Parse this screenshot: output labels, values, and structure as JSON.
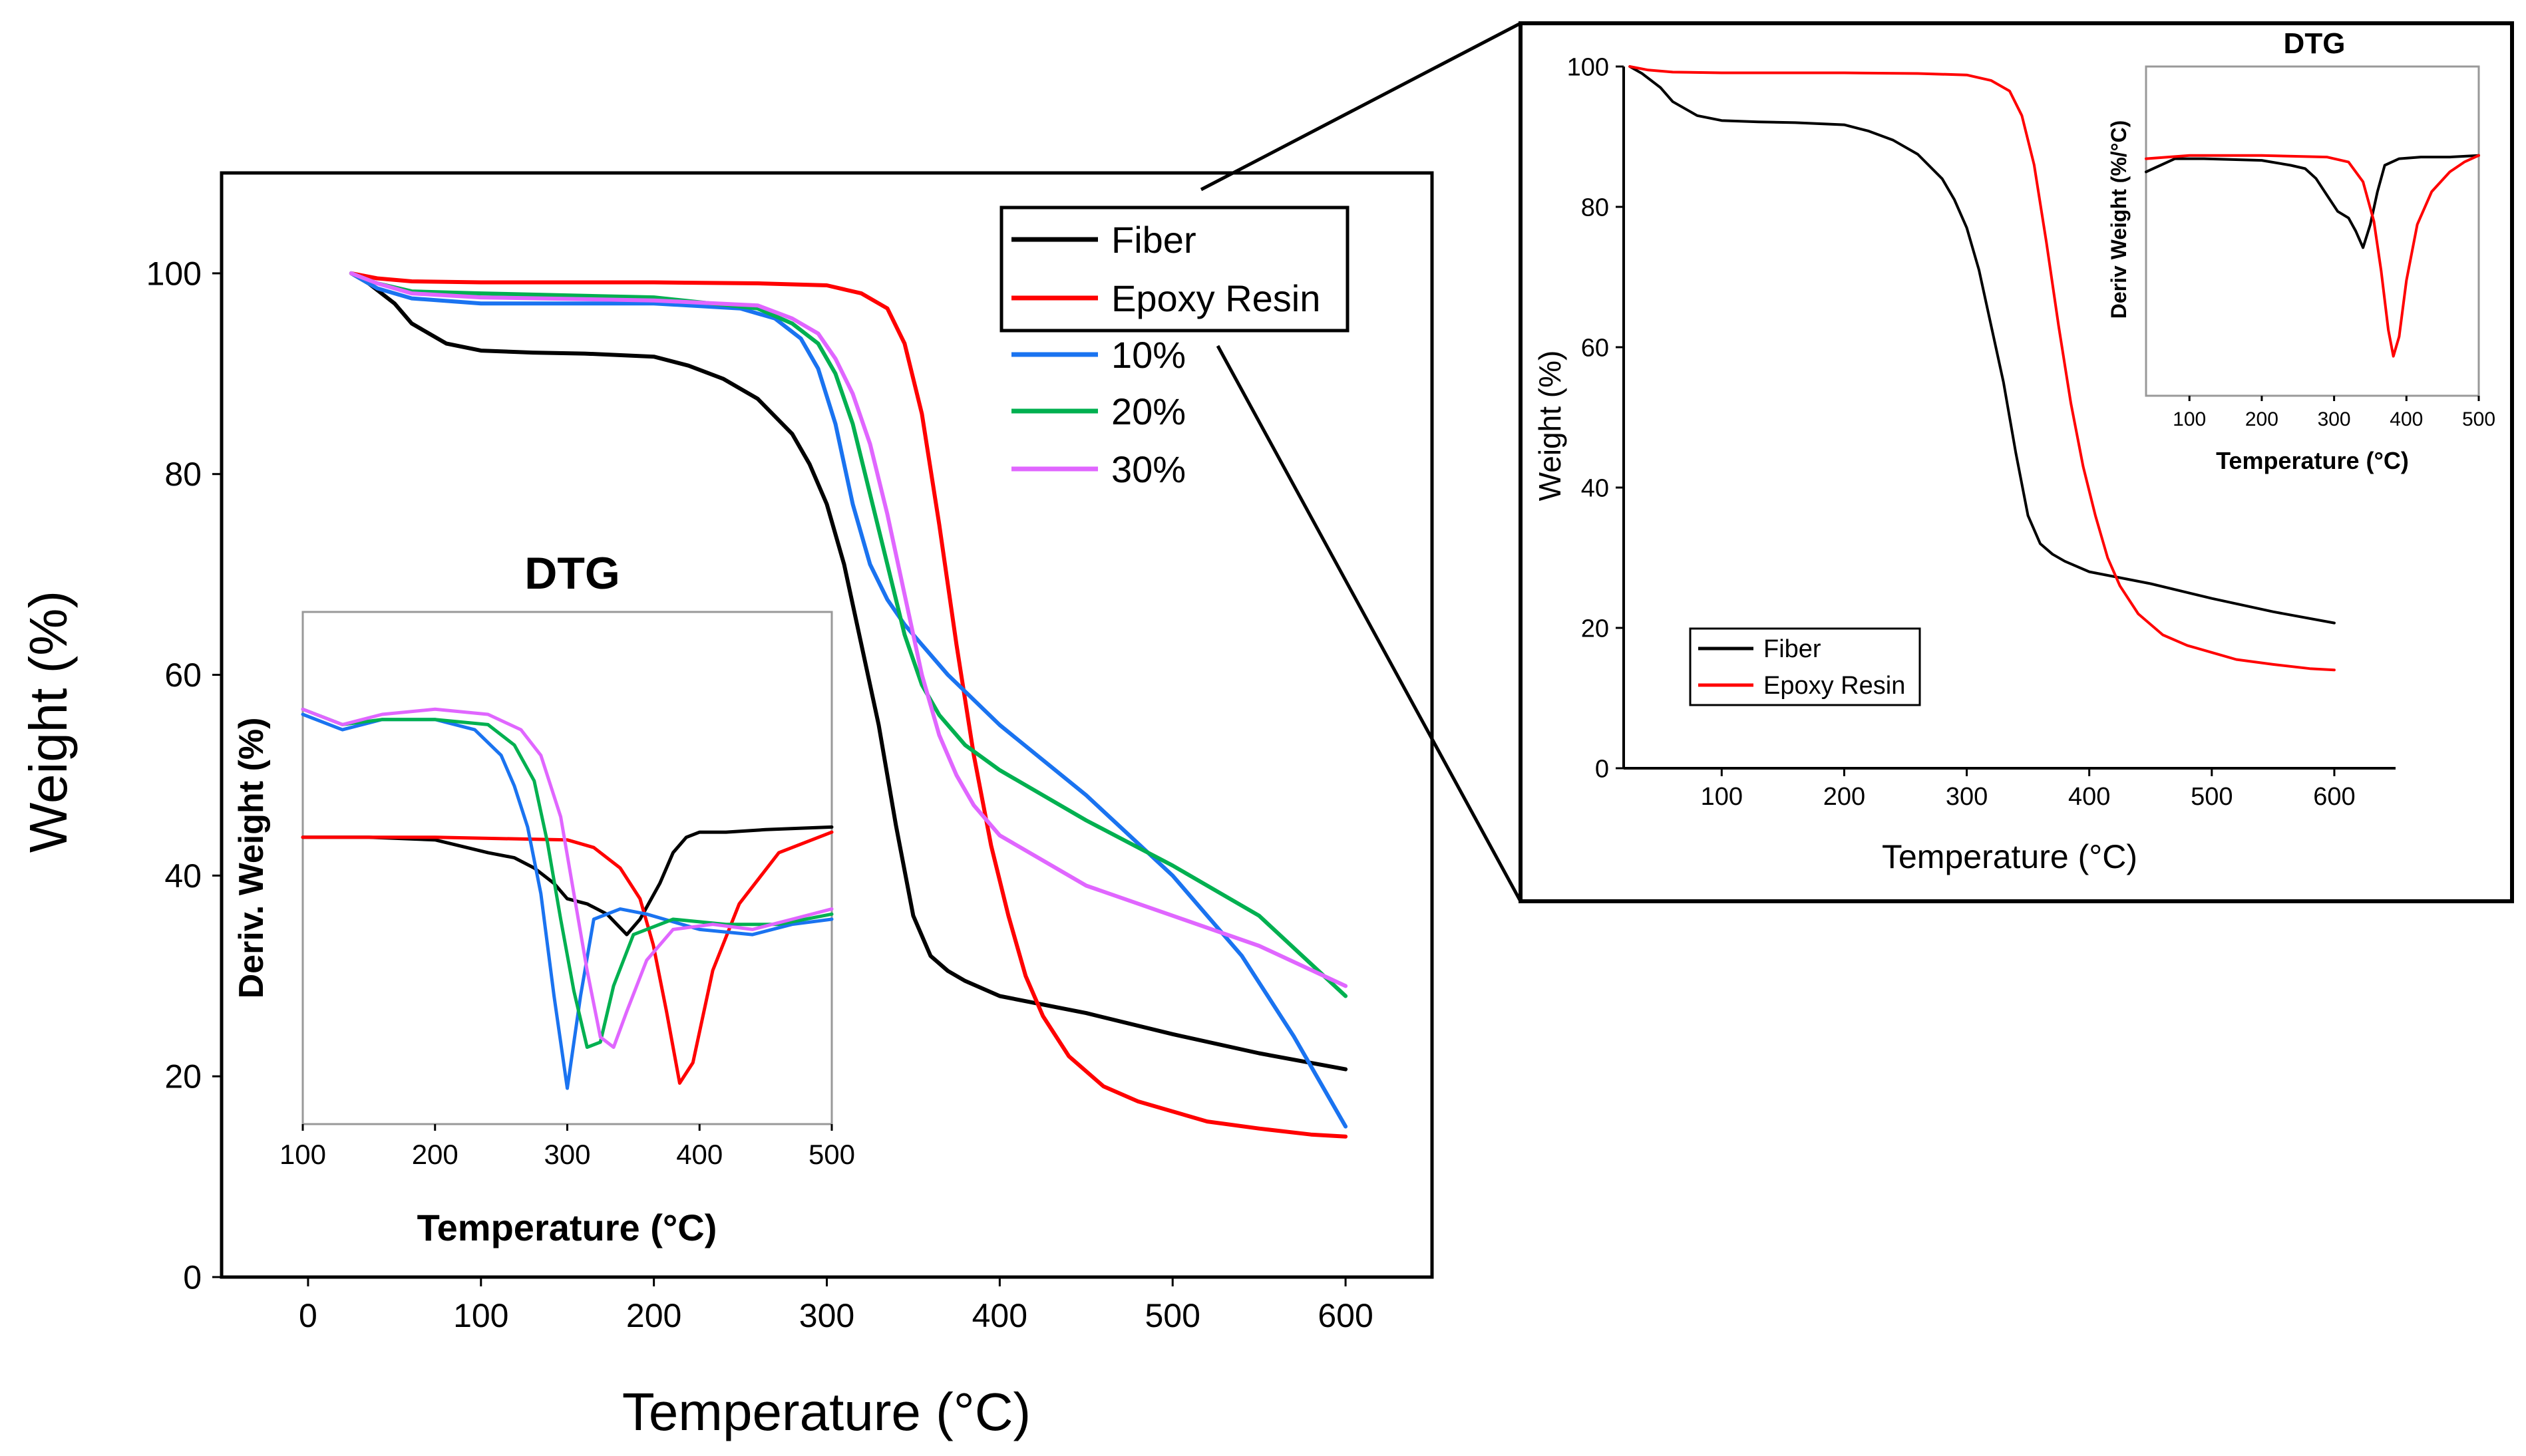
{
  "colors": {
    "fiber": "#000000",
    "epoxy": "#ff0000",
    "p10": "#1a73f0",
    "p20": "#00b050",
    "p30": "#e066ff",
    "axis": "#000000"
  },
  "chart_data": [
    {
      "id": "main",
      "type": "line",
      "title": "",
      "xlabel": "Temperature (°C)",
      "ylabel": "Weight (%)",
      "xlim": [
        -50,
        650
      ],
      "ylim": [
        0,
        110
      ],
      "xticks": [
        0,
        100,
        200,
        300,
        400,
        500,
        600
      ],
      "yticks": [
        0,
        20,
        40,
        60,
        80,
        100
      ],
      "legend_position": "top-right",
      "series": [
        {
          "name": "Fiber",
          "color_key": "fiber",
          "x": [
            25,
            35,
            50,
            60,
            70,
            80,
            100,
            130,
            160,
            200,
            220,
            240,
            260,
            280,
            290,
            300,
            310,
            320,
            330,
            340,
            350,
            360,
            370,
            380,
            400,
            450,
            500,
            550,
            600
          ],
          "y": [
            100,
            99,
            97,
            95,
            94,
            93,
            92.3,
            92.1,
            92,
            91.7,
            90.8,
            89.5,
            87.5,
            84,
            81,
            77,
            71,
            63,
            55,
            45,
            36,
            32,
            30.5,
            29.5,
            28,
            26.3,
            24.2,
            22.3,
            20.7
          ]
        },
        {
          "name": "Epoxy Resin",
          "color_key": "epoxy",
          "x": [
            25,
            40,
            60,
            100,
            200,
            260,
            300,
            320,
            335,
            345,
            355,
            365,
            375,
            385,
            395,
            405,
            415,
            425,
            440,
            460,
            480,
            500,
            520,
            550,
            580,
            600
          ],
          "y": [
            100,
            99.5,
            99.2,
            99.1,
            99.1,
            99,
            98.8,
            98,
            96.5,
            93,
            86,
            75,
            63,
            52,
            43,
            36,
            30,
            26,
            22,
            19,
            17.5,
            16.5,
            15.5,
            14.8,
            14.2,
            14
          ]
        },
        {
          "name": "10%",
          "color_key": "p10",
          "x": [
            25,
            40,
            60,
            100,
            200,
            250,
            270,
            285,
            295,
            305,
            315,
            325,
            335,
            345,
            355,
            370,
            400,
            450,
            500,
            540,
            570,
            600
          ],
          "y": [
            100,
            98.5,
            97.5,
            97,
            97,
            96.5,
            95.5,
            93.5,
            90.5,
            85,
            77,
            71,
            67.5,
            65,
            63,
            60,
            55,
            48,
            40,
            32,
            24,
            15
          ]
        },
        {
          "name": "20%",
          "color_key": "p20",
          "x": [
            25,
            40,
            60,
            100,
            200,
            260,
            280,
            295,
            305,
            315,
            325,
            335,
            345,
            355,
            365,
            380,
            400,
            450,
            500,
            550,
            600
          ],
          "y": [
            100,
            99,
            98.2,
            98,
            97.6,
            96.5,
            95,
            93,
            90,
            85,
            78,
            71,
            64,
            59,
            56,
            53,
            50.5,
            45.5,
            41,
            36,
            28
          ]
        },
        {
          "name": "30%",
          "color_key": "p30",
          "x": [
            25,
            40,
            60,
            100,
            200,
            260,
            280,
            295,
            305,
            315,
            325,
            335,
            345,
            355,
            365,
            375,
            385,
            400,
            450,
            500,
            550,
            600
          ],
          "y": [
            100,
            99,
            98,
            97.6,
            97.3,
            96.8,
            95.5,
            94,
            91.5,
            88,
            83,
            76,
            68,
            60,
            54,
            50,
            47,
            44,
            39,
            36,
            33,
            29
          ]
        }
      ]
    },
    {
      "id": "main-dtg-inset",
      "type": "line",
      "title": "DTG",
      "xlabel": "Temperature (°C)",
      "ylabel": "Deriv. Weight (%)",
      "xlim": [
        100,
        500
      ],
      "xticks": [
        100,
        200,
        300,
        400,
        500
      ],
      "yrange_relative": [
        0,
        1
      ],
      "series": [
        {
          "name": "Fiber",
          "color_key": "fiber",
          "x": [
            100,
            150,
            200,
            240,
            260,
            275,
            290,
            300,
            315,
            330,
            345,
            355,
            370,
            380,
            390,
            400,
            420,
            450,
            500
          ],
          "y": [
            0.56,
            0.56,
            0.555,
            0.53,
            0.52,
            0.5,
            0.47,
            0.44,
            0.43,
            0.41,
            0.37,
            0.4,
            0.47,
            0.53,
            0.56,
            0.57,
            0.57,
            0.575,
            0.58
          ]
        },
        {
          "name": "Epoxy Resin",
          "color_key": "epoxy",
          "x": [
            100,
            200,
            300,
            320,
            340,
            355,
            365,
            375,
            385,
            395,
            410,
            430,
            460,
            500
          ],
          "y": [
            0.56,
            0.56,
            0.555,
            0.54,
            0.5,
            0.44,
            0.35,
            0.22,
            0.08,
            0.12,
            0.3,
            0.43,
            0.53,
            0.57
          ]
        },
        {
          "name": "10%",
          "color_key": "p10",
          "x": [
            100,
            130,
            160,
            200,
            230,
            250,
            260,
            270,
            280,
            290,
            300,
            310,
            320,
            340,
            360,
            400,
            440,
            470,
            500
          ],
          "y": [
            0.8,
            0.77,
            0.79,
            0.79,
            0.77,
            0.72,
            0.66,
            0.58,
            0.45,
            0.25,
            0.07,
            0.25,
            0.4,
            0.42,
            0.41,
            0.38,
            0.37,
            0.39,
            0.4
          ]
        },
        {
          "name": "20%",
          "color_key": "p20",
          "x": [
            100,
            130,
            160,
            200,
            240,
            260,
            275,
            285,
            295,
            305,
            315,
            325,
            335,
            350,
            380,
            420,
            460,
            500
          ],
          "y": [
            0.81,
            0.78,
            0.79,
            0.79,
            0.78,
            0.74,
            0.67,
            0.55,
            0.4,
            0.26,
            0.15,
            0.16,
            0.27,
            0.37,
            0.4,
            0.39,
            0.39,
            0.41
          ]
        },
        {
          "name": "30%",
          "color_key": "p30",
          "x": [
            100,
            130,
            160,
            200,
            240,
            265,
            280,
            295,
            305,
            315,
            325,
            335,
            345,
            360,
            380,
            410,
            440,
            470,
            500
          ],
          "y": [
            0.81,
            0.78,
            0.8,
            0.81,
            0.8,
            0.77,
            0.72,
            0.6,
            0.45,
            0.3,
            0.17,
            0.15,
            0.22,
            0.32,
            0.38,
            0.39,
            0.38,
            0.4,
            0.42
          ]
        }
      ]
    },
    {
      "id": "zoom",
      "type": "line",
      "title": "",
      "xlabel": "Temperature (°C)",
      "ylabel": "Weight (%)",
      "xlim": [
        20,
        650
      ],
      "ylim": [
        0,
        100
      ],
      "xticks": [
        100,
        200,
        300,
        400,
        500,
        600
      ],
      "yticks": [
        0,
        20,
        40,
        60,
        80,
        100
      ],
      "legend_position": "bottom-left",
      "series": [
        {
          "name": "Fiber",
          "color_key": "fiber",
          "x": [
            25,
            35,
            50,
            60,
            70,
            80,
            100,
            130,
            160,
            200,
            220,
            240,
            260,
            280,
            290,
            300,
            310,
            320,
            330,
            340,
            350,
            360,
            370,
            380,
            400,
            450,
            500,
            550,
            600
          ],
          "y": [
            100,
            99,
            97,
            95,
            94,
            93,
            92.3,
            92.1,
            92,
            91.7,
            90.8,
            89.5,
            87.5,
            84,
            81,
            77,
            71,
            63,
            55,
            45,
            36,
            32,
            30.5,
            29.5,
            28,
            26.3,
            24.2,
            22.3,
            20.7
          ]
        },
        {
          "name": "Epoxy Resin",
          "color_key": "epoxy",
          "x": [
            25,
            40,
            60,
            100,
            200,
            260,
            300,
            320,
            335,
            345,
            355,
            365,
            375,
            385,
            395,
            405,
            415,
            425,
            440,
            460,
            480,
            500,
            520,
            550,
            580,
            600
          ],
          "y": [
            100,
            99.5,
            99.2,
            99.1,
            99.1,
            99,
            98.8,
            98,
            96.5,
            93,
            86,
            75,
            63,
            52,
            43,
            36,
            30,
            26,
            22,
            19,
            17.5,
            16.5,
            15.5,
            14.8,
            14.2,
            14
          ]
        }
      ]
    },
    {
      "id": "zoom-dtg-inset",
      "type": "line",
      "title": "DTG",
      "xlabel": "Temperature (°C)",
      "ylabel": "Deriv Weight (%/°C)",
      "xlim": [
        40,
        500
      ],
      "xticks": [
        100,
        200,
        300,
        400,
        500
      ],
      "yrange_relative": [
        0,
        1
      ],
      "series": [
        {
          "name": "Fiber",
          "color_key": "fiber",
          "x": [
            40,
            60,
            80,
            120,
            200,
            240,
            260,
            275,
            290,
            305,
            320,
            330,
            340,
            350,
            360,
            370,
            390,
            420,
            460,
            500
          ],
          "y": [
            0.68,
            0.7,
            0.72,
            0.72,
            0.715,
            0.7,
            0.69,
            0.66,
            0.61,
            0.56,
            0.54,
            0.5,
            0.45,
            0.52,
            0.62,
            0.7,
            0.72,
            0.725,
            0.725,
            0.73
          ]
        },
        {
          "name": "Epoxy Resin",
          "color_key": "epoxy",
          "x": [
            40,
            100,
            200,
            290,
            320,
            340,
            355,
            365,
            375,
            382,
            390,
            400,
            415,
            435,
            460,
            480,
            500
          ],
          "y": [
            0.72,
            0.73,
            0.73,
            0.725,
            0.71,
            0.65,
            0.53,
            0.38,
            0.2,
            0.12,
            0.18,
            0.35,
            0.52,
            0.62,
            0.68,
            0.71,
            0.73
          ]
        }
      ]
    }
  ],
  "labels": {
    "main_legend": [
      "Fiber",
      "Epoxy Resin",
      "10%",
      "20%",
      "30%"
    ],
    "zoom_legend": [
      "Fiber",
      "Epoxy Resin"
    ]
  }
}
